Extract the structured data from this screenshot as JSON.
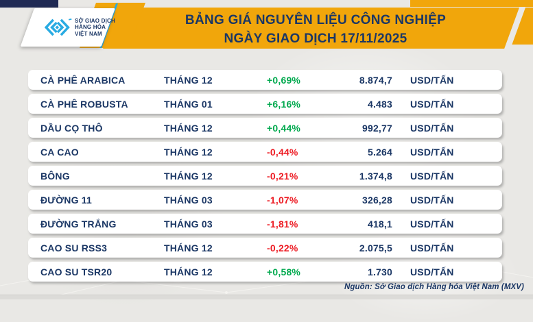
{
  "colors": {
    "navy": "#1B3765",
    "gold": "#F1A60B",
    "cyan": "#29ABE2",
    "up": "#00A94E",
    "down": "#ED1C24"
  },
  "header": {
    "title_line1": "BẢNG GIÁ NGUYÊN LIỆU CÔNG NGHIỆP",
    "title_line2": "NGÀY GIAO DỊCH 17/11/2025",
    "logo_org_line1": "SỞ GIAO DỊCH",
    "logo_org_line2": "HÀNG HÓA",
    "logo_org_line3": "VIỆT NAM"
  },
  "chart_data": {
    "type": "table",
    "title": "BẢNG GIÁ NGUYÊN LIỆU CÔNG NGHIỆP NGÀY GIAO DỊCH 17/11/2025",
    "rows": [
      [
        "CÀ PHÊ ARABICA",
        "THÁNG 12",
        "+0,69%",
        "8.874,7",
        "USD/TẤN"
      ],
      [
        "CÀ PHÊ ROBUSTA",
        "THÁNG 01",
        "+6,16%",
        "4.483",
        "USD/TẤN"
      ],
      [
        "DẦU CỌ THÔ",
        "THÁNG 12",
        "+0,44%",
        "992,77",
        "USD/TẤN"
      ],
      [
        "CA CAO",
        "THÁNG 12",
        "-0,44%",
        "5.264",
        "USD/TẤN"
      ],
      [
        "BÔNG",
        "THÁNG 12",
        "-0,21%",
        "1.374,8",
        "USD/TẤN"
      ],
      [
        "ĐƯỜNG 11",
        "THÁNG 03",
        "-1,07%",
        "326,28",
        "USD/TẤN"
      ],
      [
        "ĐƯỜNG TRẮNG",
        "THÁNG 03",
        "-1,81%",
        "418,1",
        "USD/TẤN"
      ],
      [
        "CAO SU RSS3",
        "THÁNG 12",
        "-0,22%",
        "2.075,5",
        "USD/TẤN"
      ],
      [
        "CAO SU TSR20",
        "THÁNG 12",
        "+0,58%",
        "1.730",
        "USD/TẤN"
      ]
    ]
  },
  "footer": {
    "source": "Nguồn: Sở Giao dịch Hàng hóa Việt Nam (MXV)"
  }
}
